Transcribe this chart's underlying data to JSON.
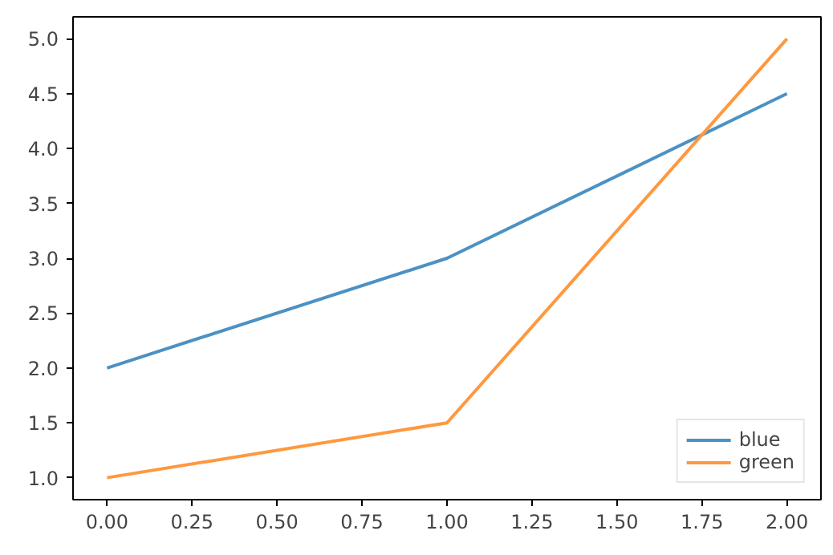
{
  "chart_data": {
    "type": "line",
    "x": [
      0,
      1,
      2
    ],
    "series": [
      {
        "name": "blue",
        "color": "#4c91c4",
        "values": [
          2,
          3,
          4.5
        ]
      },
      {
        "name": "green",
        "color": "#ff983e",
        "values": [
          1,
          1.5,
          5
        ]
      }
    ],
    "xlim": [
      -0.1,
      2.1
    ],
    "xticks": [
      {
        "value": 0,
        "label": "0.00"
      },
      {
        "value": 0.25,
        "label": "0.25"
      },
      {
        "value": 0.5,
        "label": "0.50"
      },
      {
        "value": 0.75,
        "label": "0.75"
      },
      {
        "value": 1,
        "label": "1.00"
      },
      {
        "value": 1.25,
        "label": "1.25"
      },
      {
        "value": 1.5,
        "label": "1.50"
      },
      {
        "value": 1.75,
        "label": "1.75"
      },
      {
        "value": 2,
        "label": "2.00"
      }
    ],
    "ylim": [
      0.8,
      5.2
    ],
    "yticks": [
      {
        "value": 1,
        "label": "1.0"
      },
      {
        "value": 1.5,
        "label": "1.5"
      },
      {
        "value": 2,
        "label": "2.0"
      },
      {
        "value": 2.5,
        "label": "2.5"
      },
      {
        "value": 3,
        "label": "3.0"
      },
      {
        "value": 3.5,
        "label": "3.5"
      },
      {
        "value": 4,
        "label": "4.0"
      },
      {
        "value": 4.5,
        "label": "4.5"
      },
      {
        "value": 5,
        "label": "5.0"
      }
    ],
    "legend": "bottom right",
    "grid": false,
    "line_style": "solid"
  }
}
